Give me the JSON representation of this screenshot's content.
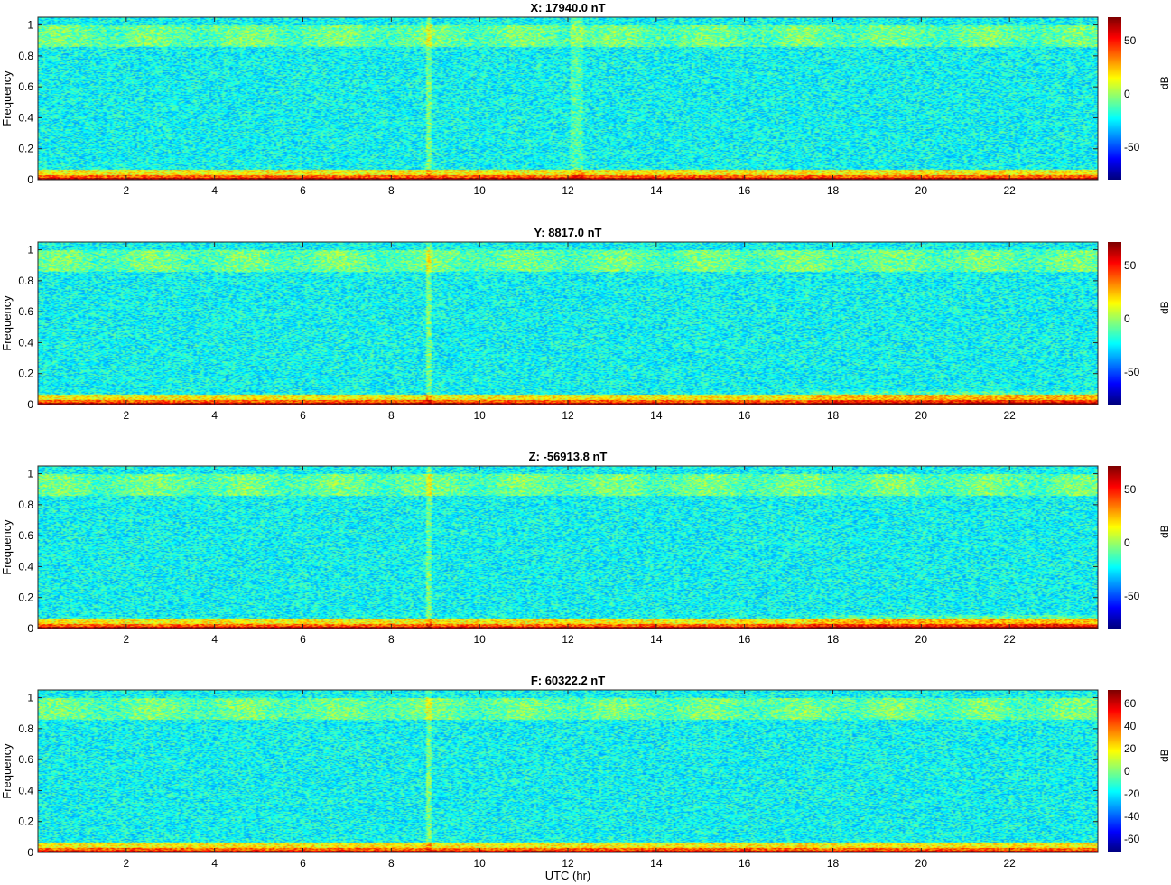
{
  "chart_data": [
    {
      "type": "heatmap",
      "title": "X: 17940.0 nT",
      "ylabel": "Frequency",
      "xlabel": "",
      "xlim": [
        0,
        24
      ],
      "ylim": [
        0,
        1.05
      ],
      "xticks": [
        2,
        4,
        6,
        8,
        10,
        12,
        14,
        16,
        18,
        20,
        22
      ],
      "yticks": [
        0,
        0.2,
        0.4,
        0.6,
        0.8,
        1
      ],
      "colorbar": {
        "label": "dB",
        "range": [
          -80,
          72
        ],
        "ticks": [
          50,
          0,
          -50
        ]
      },
      "colormap": "jet",
      "features": [
        "strong low-frequency band (~0-0.03) near max dB",
        "elevated band near frequency 0.9-1.0",
        "broadband burst near 8.8 hr",
        "broadband increase near 12.1 hr"
      ]
    },
    {
      "type": "heatmap",
      "title": "Y: 8817.0 nT",
      "ylabel": "Frequency",
      "xlabel": "",
      "xlim": [
        0,
        24
      ],
      "ylim": [
        0,
        1.05
      ],
      "xticks": [
        2,
        4,
        6,
        8,
        10,
        12,
        14,
        16,
        18,
        20,
        22
      ],
      "yticks": [
        0,
        0.2,
        0.4,
        0.6,
        0.8,
        1
      ],
      "colorbar": {
        "label": "dB",
        "range": [
          -80,
          72
        ],
        "ticks": [
          50,
          0,
          -50
        ]
      },
      "colormap": "jet",
      "features": [
        "strong low-frequency band (~0-0.03)",
        "elevated band near frequency 0.9-1.0",
        "broadband burst near 8.8 hr",
        "enhanced low-frequency power 18-24 hr"
      ]
    },
    {
      "type": "heatmap",
      "title": "Z: -56913.8 nT",
      "ylabel": "Frequency",
      "xlabel": "",
      "xlim": [
        0,
        24
      ],
      "ylim": [
        0,
        1.05
      ],
      "xticks": [
        2,
        4,
        6,
        8,
        10,
        12,
        14,
        16,
        18,
        20,
        22
      ],
      "yticks": [
        0,
        0.2,
        0.4,
        0.6,
        0.8,
        1
      ],
      "colorbar": {
        "label": "dB",
        "range": [
          -80,
          72
        ],
        "ticks": [
          50,
          0,
          -50
        ]
      },
      "colormap": "jet",
      "features": [
        "strong low-frequency band (~0-0.03)",
        "elevated band near frequency 0.9-1.0",
        "broadband burst near 8.8 hr",
        "enhanced low-frequency power 18-24 hr"
      ]
    },
    {
      "type": "heatmap",
      "title": "F: 60322.2 nT",
      "ylabel": "Frequency",
      "xlabel": "UTC (hr)",
      "xlim": [
        0,
        24
      ],
      "ylim": [
        0,
        1.05
      ],
      "xticks": [
        2,
        4,
        6,
        8,
        10,
        12,
        14,
        16,
        18,
        20,
        22
      ],
      "yticks": [
        0,
        0.2,
        0.4,
        0.6,
        0.8,
        1
      ],
      "colorbar": {
        "label": "dB",
        "range": [
          -72,
          72
        ],
        "ticks": [
          60,
          40,
          20,
          0,
          -20,
          -40,
          -60
        ]
      },
      "colormap": "jet",
      "features": [
        "strong low-frequency band (~0-0.03)",
        "elevated band near frequency 0.9-1.0",
        "broadband burst near 8.8 hr"
      ]
    }
  ]
}
